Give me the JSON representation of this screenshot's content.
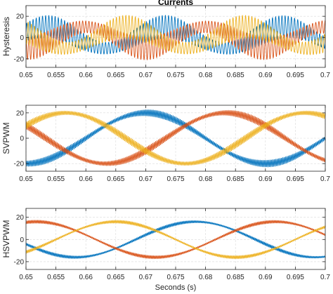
{
  "chart_data": [
    {
      "type": "line",
      "title": "Currents",
      "ylabel": "Hysteresis",
      "xlabel": "",
      "xlim": [
        0.65,
        0.7
      ],
      "ylim": [
        -28,
        30
      ],
      "x_ticks": [
        "0.65",
        "0.655",
        "0.66",
        "0.665",
        "0.67",
        "0.675",
        "0.68",
        "0.685",
        "0.69",
        "0.695",
        "0.7"
      ],
      "y_ticks": [
        "-20",
        "0",
        "20"
      ],
      "grid": true,
      "colors": [
        "#0072BD",
        "#D95319",
        "#EDB120"
      ],
      "series": [
        {
          "amplitude": 10,
          "frequency_hz": 50,
          "phase_deg": 210,
          "ripple_amplitude": 11,
          "ripple_cycles": 95
        },
        {
          "amplitude": 10,
          "frequency_hz": 50,
          "phase_deg": 90,
          "ripple_amplitude": 11,
          "ripple_cycles": 95
        },
        {
          "amplitude": 10,
          "frequency_hz": 50,
          "phase_deg": 330,
          "ripple_amplitude": 11,
          "ripple_cycles": 95
        }
      ]
    },
    {
      "type": "line",
      "title": "",
      "ylabel": "SVPWM",
      "xlabel": "",
      "xlim": [
        0.65,
        0.7
      ],
      "ylim": [
        -26,
        26
      ],
      "x_ticks": [
        "0.65",
        "0.655",
        "0.66",
        "0.665",
        "0.67",
        "0.675",
        "0.68",
        "0.685",
        "0.69",
        "0.695",
        "0.7"
      ],
      "y_ticks": [
        "-20",
        "0",
        "20"
      ],
      "grid": true,
      "colors": [
        "#0072BD",
        "#D95319",
        "#EDB120"
      ],
      "series": [
        {
          "amplitude": 20,
          "frequency_hz": 25,
          "phase_deg": 180,
          "ripple_amplitude": 2.8,
          "ripple_cycles": 210
        },
        {
          "amplitude": 20,
          "frequency_hz": 25,
          "phase_deg": 60,
          "ripple_amplitude": 2.8,
          "ripple_cycles": 210
        },
        {
          "amplitude": 20,
          "frequency_hz": 25,
          "phase_deg": 300,
          "ripple_amplitude": 2.8,
          "ripple_cycles": 210
        }
      ]
    },
    {
      "type": "line",
      "title": "",
      "ylabel": "HSVPWM",
      "xlabel": "Seconds (s)",
      "xlim": [
        0.65,
        0.7
      ],
      "ylim": [
        -27,
        28
      ],
      "x_ticks": [
        "0.65",
        "0.655",
        "0.66",
        "0.665",
        "0.67",
        "0.675",
        "0.68",
        "0.685",
        "0.69",
        "0.695",
        "0.7"
      ],
      "y_ticks": [
        "-20",
        "0",
        "20"
      ],
      "grid": true,
      "colors": [
        "#0072BD",
        "#D95319",
        "#EDB120"
      ],
      "series": [
        {
          "amplitude": 16,
          "frequency_hz": 25,
          "phase_deg": 105,
          "ripple_amplitude": 1.4,
          "ripple_cycles": 230
        },
        {
          "amplitude": 16,
          "frequency_hz": 25,
          "phase_deg": 345,
          "ripple_amplitude": 1.4,
          "ripple_cycles": 230
        },
        {
          "amplitude": 16,
          "frequency_hz": 25,
          "phase_deg": 225,
          "ripple_amplitude": 1.4,
          "ripple_cycles": 230
        }
      ]
    }
  ]
}
